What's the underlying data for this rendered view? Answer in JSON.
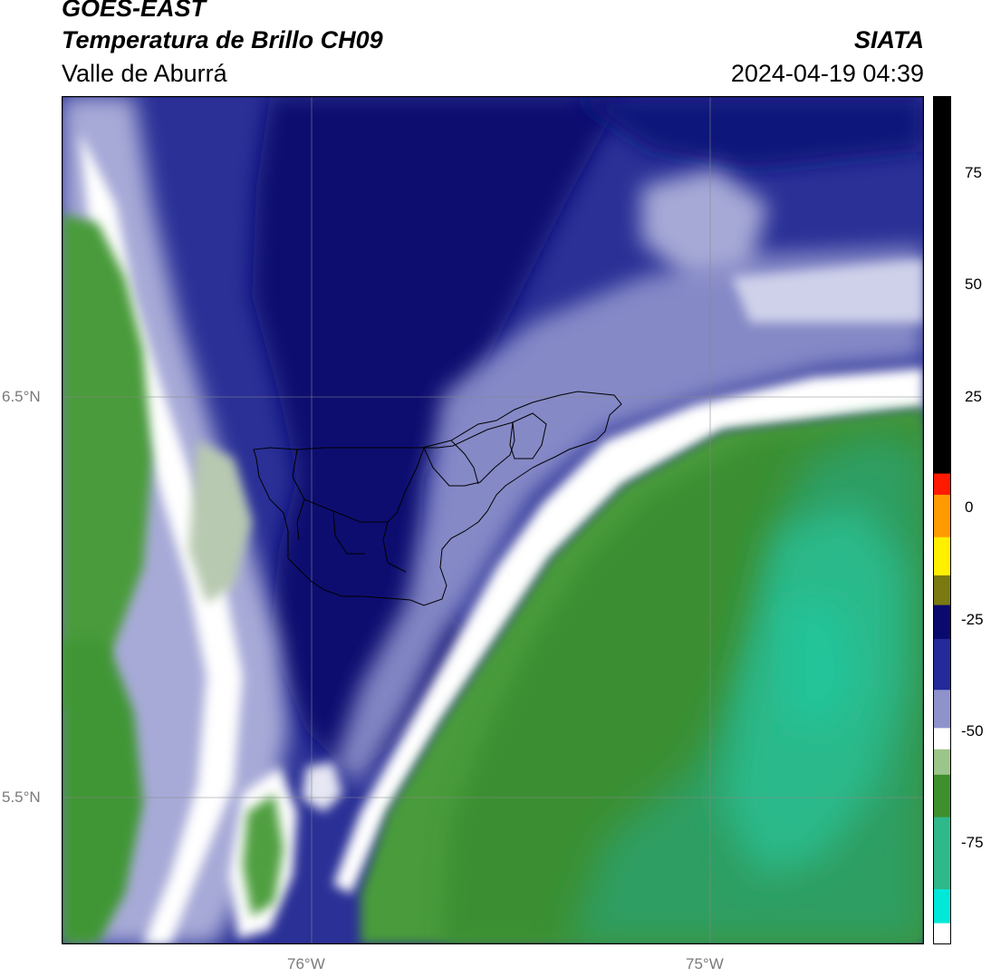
{
  "header": {
    "satellite": "GOES-EAST",
    "product": "Temperatura de Brillo CH09",
    "region": "Valle de Aburrá",
    "organization": "SIATA",
    "datetime": "2024-04-19 04:39"
  },
  "map": {
    "lat_labels": [
      "6.5°N",
      "5.5°N"
    ],
    "lon_labels": [
      "76°W",
      "75°W"
    ],
    "extent": {
      "lon_min": -76.62,
      "lon_max": -74.46,
      "lat_min": 5.13,
      "lat_max": 7.25
    }
  },
  "colorbar": {
    "range": [
      -95,
      93
    ],
    "ticks": [
      "75",
      "50",
      "25",
      "0",
      "-25",
      "-50",
      "-75"
    ],
    "colors": {
      "black": "#000000",
      "red": "#ff1a00",
      "orange": "#ff9a00",
      "yellow": "#fff000",
      "olive": "#7a7a10",
      "dark_navy": "#0a0a6e",
      "navy": "#232a9a",
      "lavender": "#8f93cc",
      "white": "#ffffff",
      "light_green": "#9cc58a",
      "green": "#3e8f2e",
      "teal": "#2fb98a",
      "cyan": "#00e8d8"
    }
  }
}
